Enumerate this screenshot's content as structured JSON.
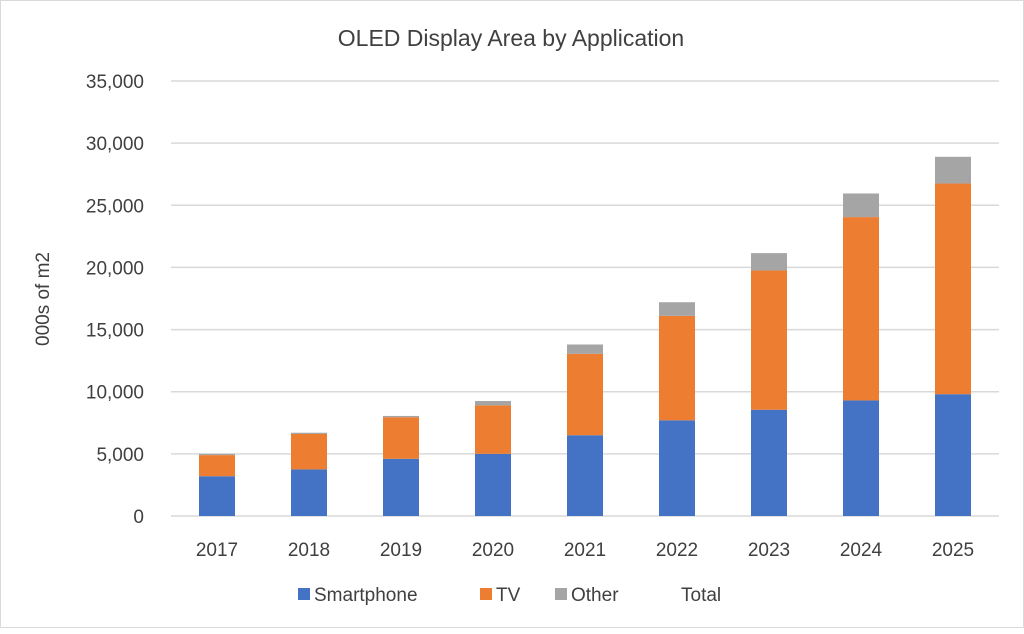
{
  "chart_data": {
    "type": "bar",
    "stacked": true,
    "title": "OLED Display Area by Application",
    "xlabel": "",
    "ylabel": "000s of m2",
    "ylim": [
      0,
      35000
    ],
    "yticks": [
      0,
      5000,
      10000,
      15000,
      20000,
      25000,
      30000,
      35000
    ],
    "ytick_labels": [
      "0",
      "5,000",
      "10,000",
      "15,000",
      "20,000",
      "25,000",
      "30,000",
      "35,000"
    ],
    "grid": true,
    "legend_position": "bottom",
    "categories": [
      "2017",
      "2018",
      "2019",
      "2020",
      "2021",
      "2022",
      "2023",
      "2024",
      "2025"
    ],
    "series": [
      {
        "name": "Smartphone",
        "color": "#4472c4",
        "values": [
          3200,
          3750,
          4600,
          5000,
          6500,
          7700,
          8550,
          9300,
          9800
        ]
      },
      {
        "name": "TV",
        "color": "#ed7d31",
        "values": [
          1700,
          2850,
          3350,
          3900,
          6550,
          8400,
          11200,
          14750,
          16950
        ]
      },
      {
        "name": "Other",
        "color": "#a5a5a5",
        "values": [
          100,
          100,
          100,
          350,
          750,
          1100,
          1400,
          1900,
          2150
        ]
      },
      {
        "name": "Total",
        "color": "none",
        "values": [
          5000,
          6700,
          8050,
          9250,
          13800,
          17200,
          21150,
          25950,
          28900
        ]
      }
    ]
  }
}
